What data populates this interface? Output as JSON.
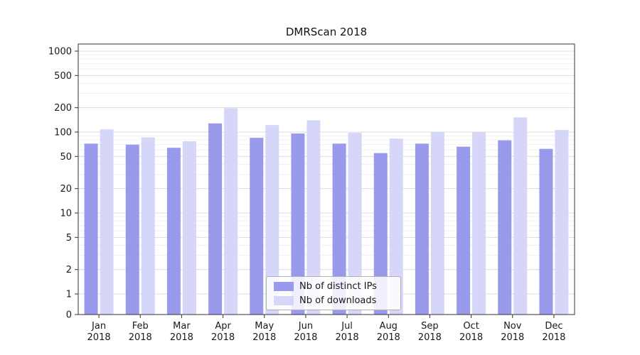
{
  "chart_data": {
    "type": "bar",
    "title": "DMRScan 2018",
    "year_label": "2018",
    "categories": [
      "Jan",
      "Feb",
      "Mar",
      "Apr",
      "May",
      "Jun",
      "Jul",
      "Aug",
      "Sep",
      "Oct",
      "Nov",
      "Dec"
    ],
    "series": [
      {
        "name": "Nb of distinct IPs",
        "color": "#9a9aed",
        "values": [
          72,
          70,
          64,
          128,
          85,
          96,
          72,
          55,
          72,
          66,
          79,
          62
        ]
      },
      {
        "name": "Nb of downloads",
        "color": "#d6d6f8",
        "values": [
          108,
          86,
          77,
          197,
          122,
          140,
          98,
          83,
          100,
          100,
          152,
          106
        ]
      }
    ],
    "yscale": "symlog",
    "yticks": [
      0,
      1,
      2,
      5,
      10,
      20,
      50,
      100,
      200,
      500,
      1000
    ],
    "ylim": [
      0,
      1500
    ],
    "xlabel": "",
    "ylabel": "",
    "grid": true,
    "legend_position": "lower center"
  }
}
